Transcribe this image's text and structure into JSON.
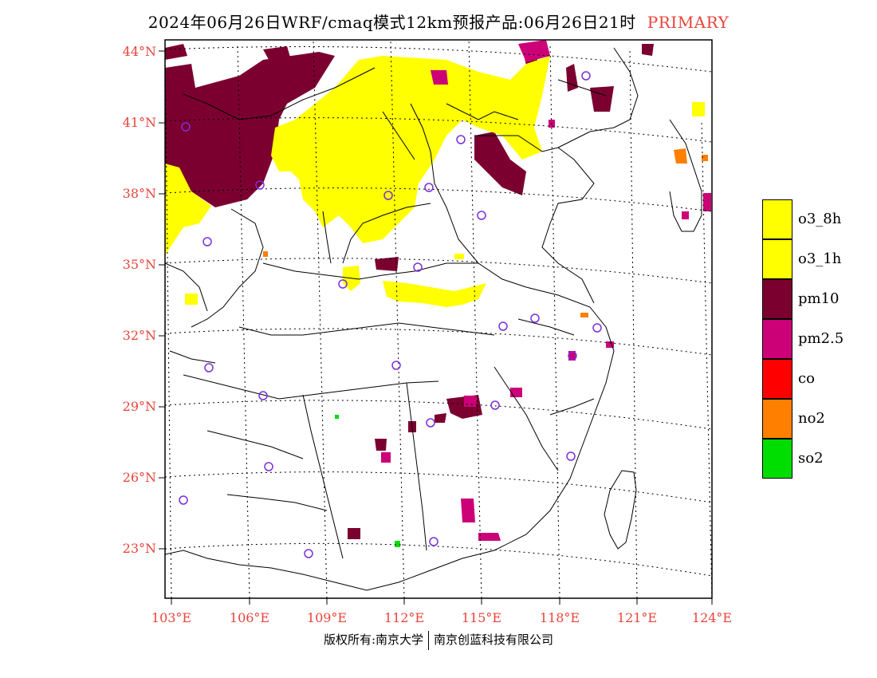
{
  "title": {
    "main": "2024年06月26日WRF/cmaq模式12km预报产品:06月26日21时",
    "tag": "PRIMARY"
  },
  "axes": {
    "lat_labels": [
      "44°N",
      "41°N",
      "38°N",
      "35°N",
      "32°N",
      "29°N",
      "26°N",
      "23°N"
    ],
    "lon_labels": [
      "103°E",
      "106°E",
      "109°E",
      "112°E",
      "115°E",
      "118°E",
      "121°E",
      "124°E"
    ]
  },
  "legend": [
    {
      "label": "o3_8h",
      "color": "#ffff00"
    },
    {
      "label": "o3_1h",
      "color": "#ffff00"
    },
    {
      "label": "pm10",
      "color": "#7b0030"
    },
    {
      "label": "pm2.5",
      "color": "#cc0077"
    },
    {
      "label": "co",
      "color": "#ff0000"
    },
    {
      "label": "no2",
      "color": "#ff7f00"
    },
    {
      "label": "so2",
      "color": "#00dd00"
    }
  ],
  "footer": {
    "left": "版权所有:南京大学",
    "right": "南京创蓝科技有限公司"
  }
}
